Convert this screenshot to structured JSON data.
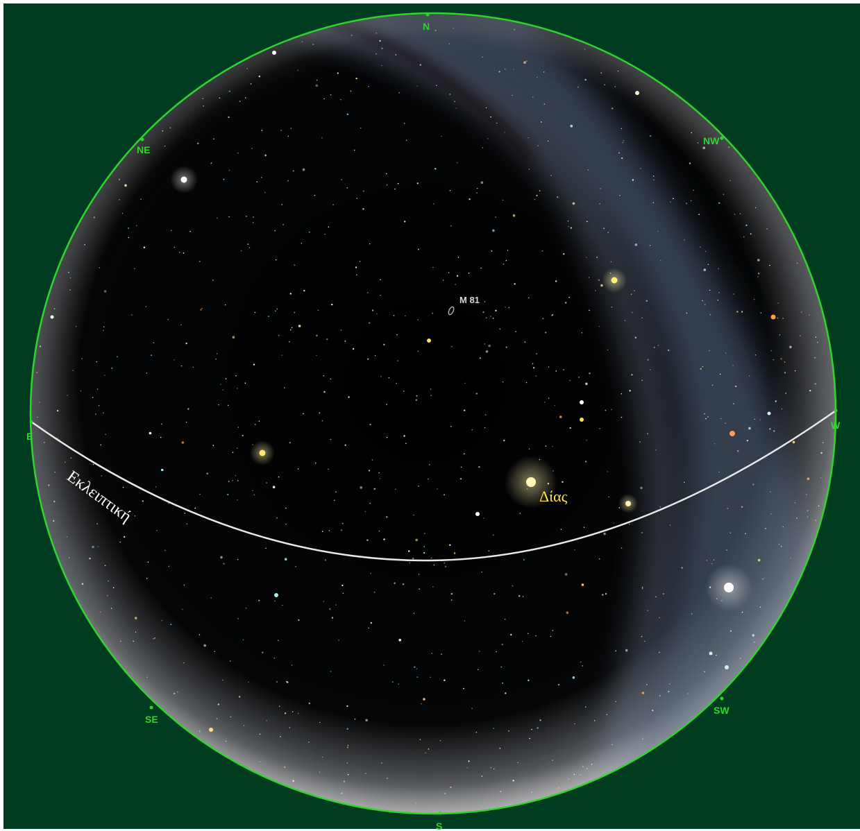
{
  "chart_data": {
    "type": "sky-map",
    "cardinal_labels": [
      "N",
      "NE",
      "NW",
      "E",
      "W",
      "SE",
      "SW",
      "S"
    ],
    "object_labels": [
      "M 81",
      "Δίας"
    ],
    "ecliptic_label": "Εκλειπτική"
  },
  "colors": {
    "background": "#003d20",
    "horizon": "#2fd52f",
    "cardinal_text": "#2fd52f",
    "sky": "#000000",
    "milky_way": "#7f8fa8",
    "ecliptic": "#e8e8e8",
    "planet_label": "#ffe44a",
    "dso_label": "#d8d8d8"
  },
  "icons": {
    "dso_marker": "galaxy-ellipse-icon",
    "planet": "planet-glow-icon"
  }
}
